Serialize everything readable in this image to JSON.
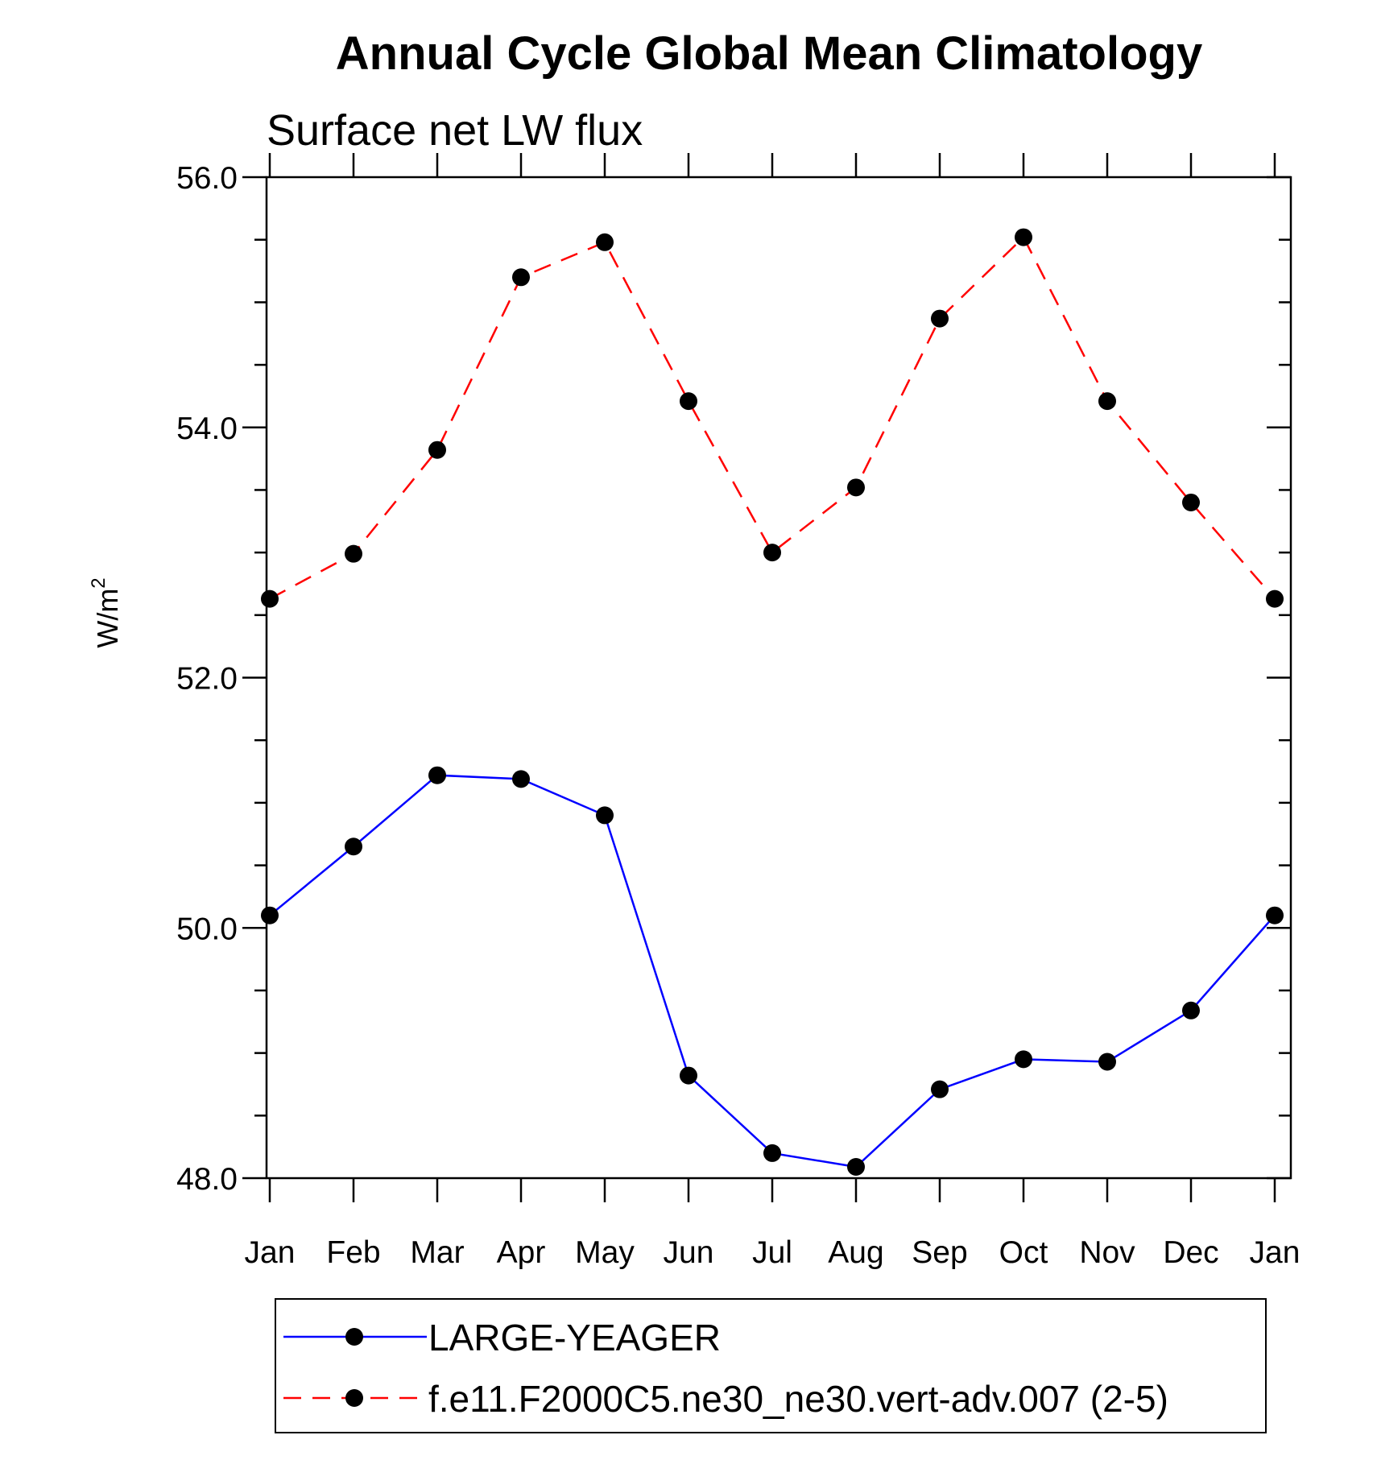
{
  "chart_data": {
    "type": "line",
    "title": "Annual Cycle Global Mean Climatology",
    "subtitle": "Surface net LW flux",
    "ylabel": "W/m",
    "ylabel_superscript": "2",
    "ylim": [
      48.0,
      56.0
    ],
    "yticks": [
      "48.0",
      "50.0",
      "52.0",
      "54.0",
      "56.0"
    ],
    "categories": [
      "Jan",
      "Feb",
      "Mar",
      "Apr",
      "May",
      "Jun",
      "Jul",
      "Aug",
      "Sep",
      "Oct",
      "Nov",
      "Dec",
      "Jan"
    ],
    "grid": false,
    "legend_position": "bottom",
    "series": [
      {
        "name": "LARGE-YEAGER",
        "color": "#0000ff",
        "line_style": "solid",
        "marker": "filled-circle",
        "values": [
          50.1,
          50.65,
          51.22,
          51.19,
          50.9,
          48.82,
          48.2,
          48.09,
          48.71,
          48.95,
          48.93,
          49.34,
          50.1
        ]
      },
      {
        "name": "f.e11.F2000C5.ne30_ne30.vert-adv.007 (2-5)",
        "color": "#ff0000",
        "line_style": "dashed",
        "marker": "filled-circle",
        "values": [
          52.63,
          52.99,
          53.82,
          55.2,
          55.48,
          54.21,
          53.0,
          53.52,
          54.87,
          55.52,
          54.21,
          53.4,
          52.63
        ]
      }
    ]
  }
}
